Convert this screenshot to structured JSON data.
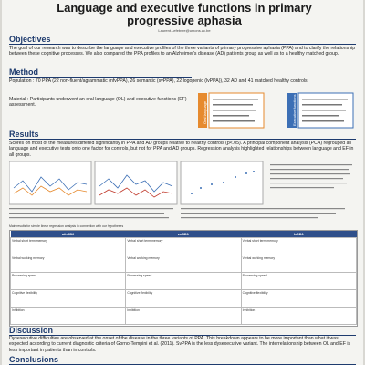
{
  "header": {
    "title": "Language and executive functions in primary progressive aphasia",
    "author": "Laurent.Lefebvre@umons.ac.be"
  },
  "objectives": {
    "heading": "Objectives",
    "text": "The goal of our research was to describe the language and executive profiles of the three variants of primary progressive aphasia (PPA) and to clarify the relationship between these cognitive processes. We also compared the PPA profiles to an Alzheimer's disease (AD) patients group as well as to a healthy matched group."
  },
  "method": {
    "heading": "Method",
    "population": "Population : 70 PPA (22 non-fluent/agrammatic (nfvPPA), 26 semantic (svPPA), 22 logopenic (lvPPA)), 32 AD and 41 matched healthy controls.",
    "material": "Material : Participants underwent an oral language (OL) and executive functions (EF) assessment.",
    "diagram": [
      "Oral language",
      "Executive functions"
    ]
  },
  "results": {
    "heading": "Results",
    "text": "Scores on most of the measures differed significantly in PPA and AD groups relative to healthy controls (p<.05). A principal component analysis (PCA) regrouped all language and executive tests onto one factor for controls, but not for PPA and AD groups. Regression analysis highlighted relationships between language and EF in all groups.",
    "table": {
      "caption": "Main results for simple linear regression analysis in connection with our hypotheses",
      "columns": [
        "nfvPPA",
        "svPPA",
        "lvPPA"
      ],
      "rows": [
        [
          "Verbal short term memory",
          "Verbal short term memory",
          "Verbal short term memory"
        ],
        [
          "Verbal working memory",
          "Verbal working memory",
          "Verbal working memory"
        ],
        [
          "Processing speed",
          "Processing speed",
          "Processing speed"
        ],
        [
          "Cognitive flexibility",
          "Cognitive flexibility",
          "Cognitive flexibility"
        ],
        [
          "Inhibition",
          "Inhibition",
          "Inhibition"
        ]
      ]
    }
  },
  "discussion": {
    "heading": "Discussion",
    "text": "Dysexecutive difficulties are observed at the onset of the disease in the three variants of PPA. This breakdown appears to be more important than what it was expected according to current diagnostic criteria of Gorno-Tempini et al. (2011). SvPPA is the less dysexecutive variant. The interrelationship between OL and EF is less important in patients than in controls."
  },
  "conclusions": {
    "heading": "Conclusions"
  }
}
